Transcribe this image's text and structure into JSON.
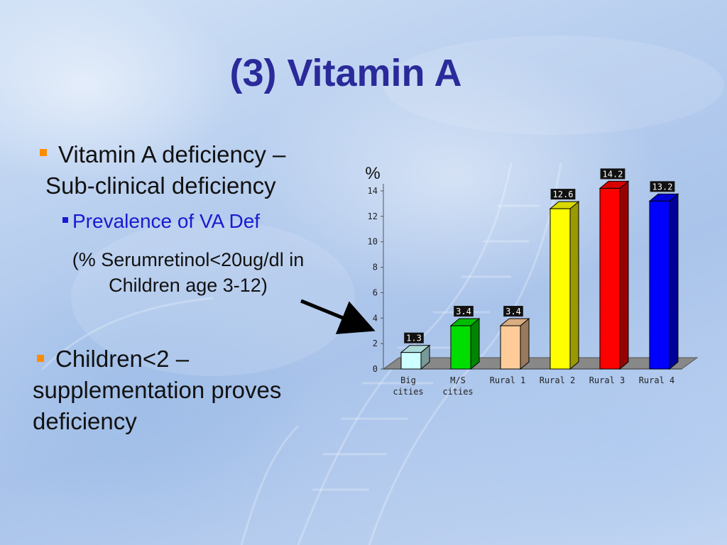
{
  "slide": {
    "title": "(3) Vitamin A",
    "bullet1_line1": "Vitamin A deficiency –",
    "bullet1_line2": "Sub-clinical deficiency",
    "subbullet": "Prevalence of  VA Def",
    "note_line1": "(% Serumretinol<20ug/dl in",
    "note_line2": "Children age 3-12)",
    "bullet2_line1": "Children<2 –",
    "bullet2_line2": "supplementation proves",
    "bullet2_line3": "deficiency"
  },
  "colors": {
    "title": "#2a2a9a",
    "bullet_marker": "#ff8c00",
    "subbullet_text": "#1a1ad0"
  },
  "chart_data": {
    "type": "bar",
    "style": "3d",
    "ylabel": "%",
    "ylim": [
      0,
      14
    ],
    "yticks": [
      0,
      2,
      4,
      6,
      8,
      10,
      12,
      14
    ],
    "categories": [
      {
        "line1": "Big",
        "line2": "cities"
      },
      {
        "line1": "M/S",
        "line2": "cities"
      },
      {
        "line1": "Rural 1",
        "line2": ""
      },
      {
        "line1": "Rural 2",
        "line2": ""
      },
      {
        "line1": "Rural 3",
        "line2": ""
      },
      {
        "line1": "Rural 4",
        "line2": ""
      }
    ],
    "values": [
      1.3,
      3.4,
      3.4,
      12.6,
      14.2,
      13.2
    ],
    "value_labels": [
      "1.3",
      "3.4",
      "3.4",
      "12.6",
      "14.2",
      "13.2"
    ],
    "bar_colors": [
      "#ccffff",
      "#00dd00",
      "#ffcc99",
      "#ffff00",
      "#ff0000",
      "#0000ff"
    ],
    "grid": false,
    "legend": "none"
  }
}
